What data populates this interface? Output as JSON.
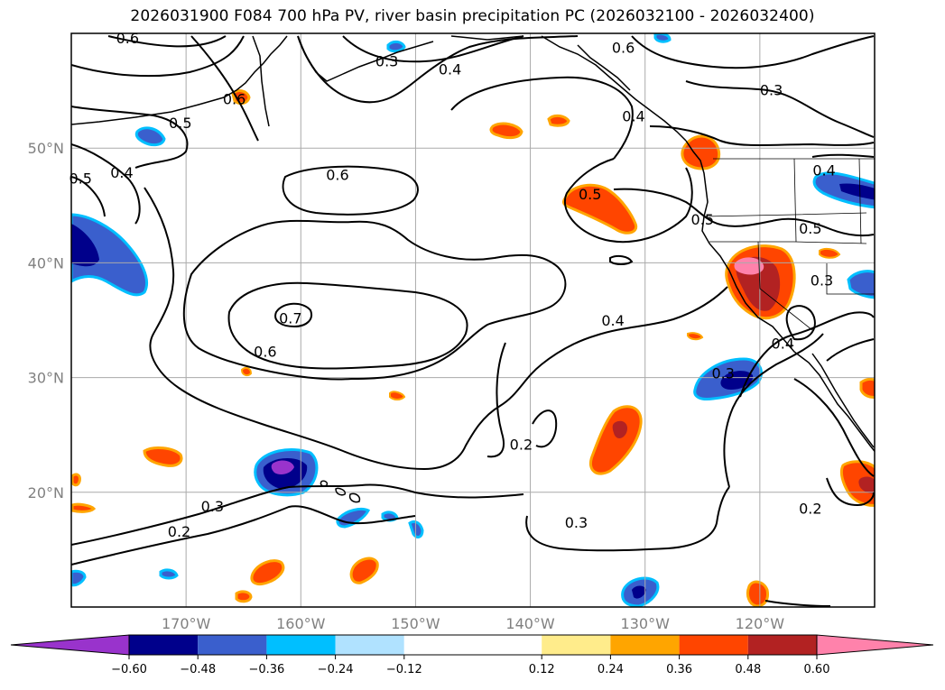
{
  "chart_data": {
    "type": "contour-map",
    "title": "2026031900 F084 700 hPa PV, river basin precipitation PC (2026032100 - 2026032400)",
    "lon_range": [
      -180,
      -110
    ],
    "lat_range": [
      10,
      60
    ],
    "x_ticks": [
      {
        "lon": -170,
        "label": "170°W"
      },
      {
        "lon": -160,
        "label": "160°W"
      },
      {
        "lon": -150,
        "label": "150°W"
      },
      {
        "lon": -140,
        "label": "140°W"
      },
      {
        "lon": -130,
        "label": "130°W"
      },
      {
        "lon": -120,
        "label": "120°W"
      }
    ],
    "y_ticks": [
      {
        "lat": 50,
        "label": "50°N"
      },
      {
        "lat": 40,
        "label": "40°N"
      },
      {
        "lat": 30,
        "label": "30°N"
      },
      {
        "lat": 20,
        "label": "20°N"
      }
    ],
    "grid": true,
    "colorbar": {
      "orientation": "horizontal",
      "extend": "both",
      "boundaries": [
        -0.72,
        -0.6,
        -0.48,
        -0.36,
        -0.24,
        -0.12,
        0.12,
        0.24,
        0.36,
        0.48,
        0.6,
        0.72
      ],
      "colors": [
        "#9933cc",
        "#00008b",
        "#3a5fcd",
        "#00bfff",
        "#b0e2ff",
        "#ffffff",
        "#ffec8b",
        "#ffa500",
        "#ff4500",
        "#b22222",
        "#ff82ab"
      ],
      "tick_labels": [
        "−0.60",
        "−0.48",
        "−0.36",
        "−0.24",
        "−0.12",
        "0.12",
        "0.24",
        "0.36",
        "0.48",
        "0.60"
      ]
    },
    "contour_labels": [
      {
        "text": "0.6",
        "lon": -175.1,
        "lat": 59.6
      },
      {
        "text": "0.3",
        "lon": -152.5,
        "lat": 57.6
      },
      {
        "text": "0.4",
        "lon": -147.0,
        "lat": 56.9
      },
      {
        "text": "0.6",
        "lon": -131.9,
        "lat": 58.8
      },
      {
        "text": "0.6",
        "lon": -165.8,
        "lat": 54.3
      },
      {
        "text": "0.5",
        "lon": -170.5,
        "lat": 52.2
      },
      {
        "text": "0.4",
        "lon": -131.0,
        "lat": 52.8
      },
      {
        "text": "0.3",
        "lon": -119.0,
        "lat": 55.1
      },
      {
        "text": "0.5",
        "lon": -179.2,
        "lat": 47.4
      },
      {
        "text": "0.4",
        "lon": -175.6,
        "lat": 47.9
      },
      {
        "text": "0.6",
        "lon": -156.8,
        "lat": 47.7
      },
      {
        "text": "0.5",
        "lon": -134.8,
        "lat": 46.0
      },
      {
        "text": "0.4",
        "lon": -114.4,
        "lat": 48.1
      },
      {
        "text": "0.5",
        "lon": -125.0,
        "lat": 43.8
      },
      {
        "text": "0.5",
        "lon": -115.6,
        "lat": 43.0
      },
      {
        "text": "0.3",
        "lon": -114.6,
        "lat": 38.5
      },
      {
        "text": "0.7",
        "lon": -160.9,
        "lat": 35.2
      },
      {
        "text": "0.4",
        "lon": -132.8,
        "lat": 35.0
      },
      {
        "text": "0.6",
        "lon": -163.1,
        "lat": 32.3
      },
      {
        "text": "0.3",
        "lon": -123.2,
        "lat": 30.4
      },
      {
        "text": "0.4",
        "lon": -118.0,
        "lat": 33.0
      },
      {
        "text": "0.2",
        "lon": -140.8,
        "lat": 24.2
      },
      {
        "text": "0.3",
        "lon": -167.7,
        "lat": 18.8
      },
      {
        "text": "0.2",
        "lon": -170.6,
        "lat": 16.6
      },
      {
        "text": "0.3",
        "lon": -136.0,
        "lat": 17.4
      },
      {
        "text": "0.2",
        "lon": -115.6,
        "lat": 18.6
      }
    ]
  }
}
